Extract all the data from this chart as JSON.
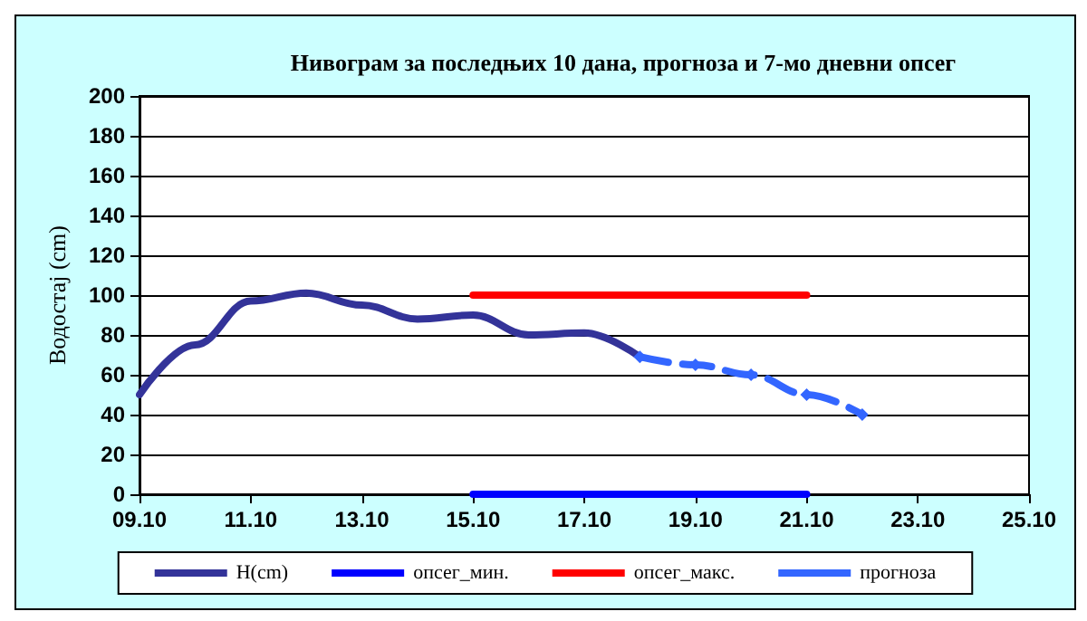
{
  "chart_data": {
    "type": "line",
    "title": "Нивограм за последњих 10 дана, прогноза и 7-мо дневни опсег",
    "ylabel": "Водостај (cm)",
    "series": [
      {
        "name": "H(cm)",
        "color": "#333399",
        "marker": "none",
        "line_style": "solid",
        "x": [
          "--10-09",
          "--10-10",
          "--10-11",
          "--10-12",
          "--10-13",
          "--10-14",
          "--10-15",
          "--10-16",
          "--10-17",
          "--10-18"
        ],
        "values": [
          50,
          75,
          97,
          101,
          95,
          88,
          90,
          80,
          81,
          69
        ]
      },
      {
        "name": "опсег_мин.",
        "color": "#0000ff",
        "marker": "none",
        "line_style": "solid",
        "x": [
          "--10-15",
          "--10-21"
        ],
        "values": [
          0,
          0
        ]
      },
      {
        "name": "опсег_макс.",
        "color": "#ff0000",
        "marker": "none",
        "line_style": "solid",
        "x": [
          "--10-15",
          "--10-21"
        ],
        "values": [
          100,
          100
        ]
      },
      {
        "name": "прогноза",
        "color": "#3366ff",
        "marker": "diamond",
        "line_style": "dashed",
        "x": [
          "--10-18",
          "--10-19",
          "--10-20",
          "--10-21",
          "--10-22"
        ],
        "values": [
          69,
          65,
          60,
          50,
          40
        ]
      }
    ],
    "xlim": [
      "--10-09",
      "--10-25"
    ],
    "xticks": [
      {
        "value": "--10-09",
        "label": "09.10"
      },
      {
        "value": "--10-11",
        "label": "11.10"
      },
      {
        "value": "--10-13",
        "label": "13.10"
      },
      {
        "value": "--10-15",
        "label": "15.10"
      },
      {
        "value": "--10-17",
        "label": "17.10"
      },
      {
        "value": "--10-19",
        "label": "19.10"
      },
      {
        "value": "--10-21",
        "label": "21.10"
      },
      {
        "value": "--10-23",
        "label": "23.10"
      },
      {
        "value": "--10-25",
        "label": "25.10"
      }
    ],
    "ylim": [
      0,
      200
    ],
    "yticks": [
      0,
      20,
      40,
      60,
      80,
      100,
      120,
      140,
      160,
      180,
      200
    ],
    "grid": "y",
    "legend": "bottom"
  }
}
